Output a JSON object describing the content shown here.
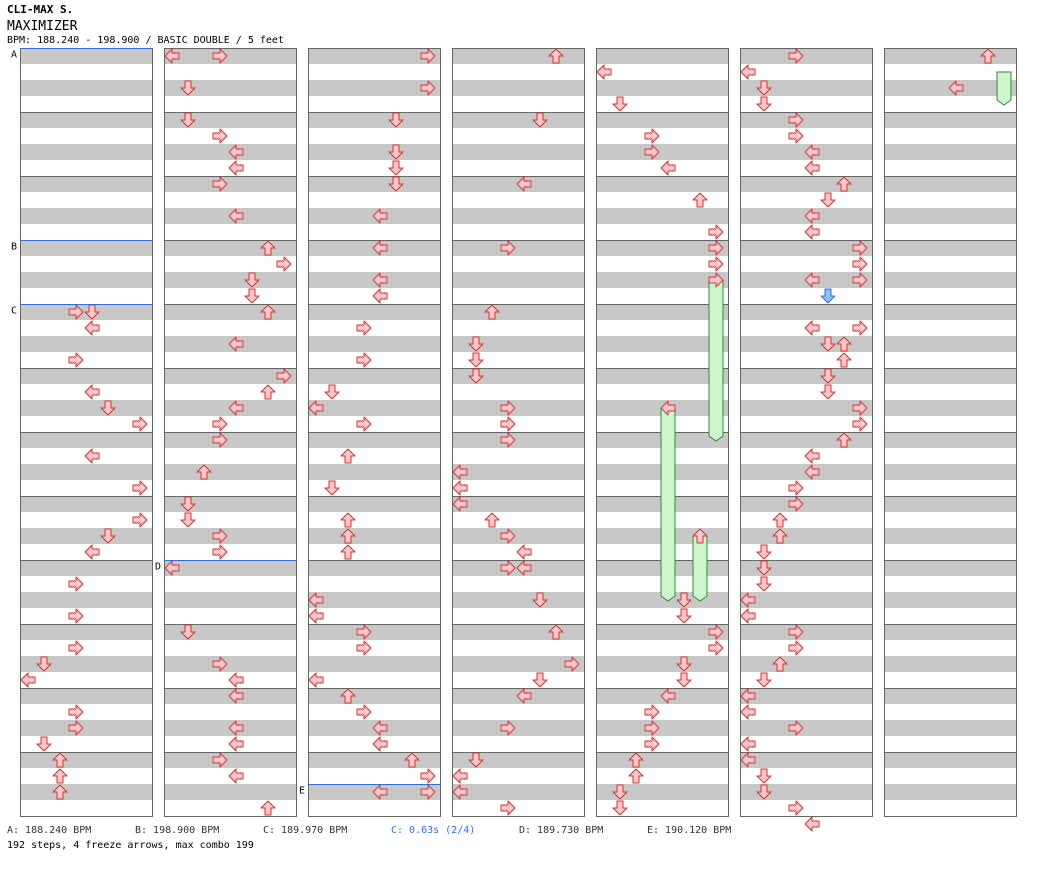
{
  "header": {
    "artist": "CLI-MAX S.",
    "title": "MAXIMIZER",
    "info": "BPM: 188.240 - 198.900 / BASIC DOUBLE / 5 feet"
  },
  "legend": [
    {
      "text": "A: 188.240 BPM",
      "color": "#333333"
    },
    {
      "text": "B: 198.900 BPM",
      "color": "#333333"
    },
    {
      "text": "C: 189.970 BPM",
      "color": "#333333"
    },
    {
      "text": "C: 0.63s (2/4)",
      "color": "#2f6fd6"
    },
    {
      "text": "D: 189.730 BPM",
      "color": "#333333"
    },
    {
      "text": "E: 190.120 BPM",
      "color": "#333333"
    }
  ],
  "summary": "192 steps, 4 freeze arrows, max combo 199",
  "colors": {
    "arrow_fill": "#f8c8c8",
    "arrow_stroke": "#cc3333",
    "freeze_fill": "#cff5cf",
    "freeze_stroke": "#2e8b2e",
    "stop_arrow": "#8ec0f0",
    "section_line": "#2f6fd6"
  },
  "chart_data": {
    "type": "step-chart",
    "style": "BASIC DOUBLE",
    "rows_per_column": 48,
    "direction_codes": "L=left, D=down, U=up, R=right",
    "sections": [
      {
        "label": "A",
        "column": 0,
        "row": 0
      },
      {
        "label": "B",
        "column": 0,
        "row": 12
      },
      {
        "label": "C",
        "column": 0,
        "row": 16
      },
      {
        "label": "D",
        "column": 1,
        "row": 32
      },
      {
        "label": "E",
        "column": 2,
        "row": 46
      }
    ],
    "columns": [
      {
        "arrows": [
          [
            16,
            3,
            "R"
          ],
          [
            16,
            4,
            "D"
          ],
          [
            17,
            4,
            "L"
          ],
          [
            19,
            3,
            "R"
          ],
          [
            21,
            4,
            "L"
          ],
          [
            22,
            5,
            "D"
          ],
          [
            23,
            7,
            "R"
          ],
          [
            25,
            4,
            "L"
          ],
          [
            27,
            7,
            "R"
          ],
          [
            29,
            7,
            "R"
          ],
          [
            30,
            5,
            "D"
          ],
          [
            31,
            4,
            "L"
          ],
          [
            33,
            3,
            "R"
          ],
          [
            35,
            3,
            "R"
          ],
          [
            37,
            3,
            "R"
          ],
          [
            38,
            1,
            "D"
          ],
          [
            39,
            0,
            "L"
          ],
          [
            41,
            3,
            "R"
          ],
          [
            42,
            3,
            "R"
          ],
          [
            43,
            1,
            "D"
          ],
          [
            44,
            2,
            "U"
          ],
          [
            45,
            2,
            "U"
          ],
          [
            46,
            2,
            "U"
          ]
        ],
        "freezes": [],
        "stops": []
      },
      {
        "arrows": [
          [
            0,
            0,
            "L"
          ],
          [
            0,
            3,
            "R"
          ],
          [
            2,
            1,
            "D"
          ],
          [
            4,
            1,
            "D"
          ],
          [
            5,
            3,
            "R"
          ],
          [
            6,
            4,
            "L"
          ],
          [
            7,
            4,
            "L"
          ],
          [
            8,
            3,
            "R"
          ],
          [
            10,
            4,
            "L"
          ],
          [
            12,
            6,
            "U"
          ],
          [
            13,
            7,
            "R"
          ],
          [
            14,
            5,
            "D"
          ],
          [
            15,
            5,
            "D"
          ],
          [
            16,
            6,
            "U"
          ],
          [
            18,
            4,
            "L"
          ],
          [
            20,
            7,
            "R"
          ],
          [
            21,
            6,
            "U"
          ],
          [
            22,
            4,
            "L"
          ],
          [
            23,
            3,
            "R"
          ],
          [
            24,
            3,
            "R"
          ],
          [
            26,
            2,
            "U"
          ],
          [
            28,
            1,
            "D"
          ],
          [
            29,
            1,
            "D"
          ],
          [
            30,
            3,
            "R"
          ],
          [
            31,
            3,
            "R"
          ],
          [
            32,
            0,
            "L"
          ],
          [
            36,
            1,
            "D"
          ],
          [
            38,
            3,
            "R"
          ],
          [
            39,
            4,
            "L"
          ],
          [
            40,
            4,
            "L"
          ],
          [
            42,
            4,
            "L"
          ],
          [
            43,
            4,
            "L"
          ],
          [
            44,
            3,
            "R"
          ],
          [
            45,
            4,
            "L"
          ],
          [
            47,
            6,
            "U"
          ]
        ],
        "freezes": [],
        "stops": []
      },
      {
        "arrows": [
          [
            0,
            7,
            "R"
          ],
          [
            2,
            7,
            "R"
          ],
          [
            4,
            5,
            "D"
          ],
          [
            6,
            5,
            "D"
          ],
          [
            7,
            5,
            "D"
          ],
          [
            8,
            5,
            "D"
          ],
          [
            10,
            4,
            "L"
          ],
          [
            12,
            4,
            "L"
          ],
          [
            14,
            4,
            "L"
          ],
          [
            15,
            4,
            "L"
          ],
          [
            17,
            3,
            "R"
          ],
          [
            19,
            3,
            "R"
          ],
          [
            21,
            1,
            "D"
          ],
          [
            22,
            0,
            "L"
          ],
          [
            23,
            3,
            "R"
          ],
          [
            25,
            2,
            "U"
          ],
          [
            27,
            1,
            "D"
          ],
          [
            29,
            2,
            "U"
          ],
          [
            30,
            2,
            "U"
          ],
          [
            31,
            2,
            "U"
          ],
          [
            34,
            0,
            "L"
          ],
          [
            35,
            0,
            "L"
          ],
          [
            36,
            3,
            "R"
          ],
          [
            37,
            3,
            "R"
          ],
          [
            39,
            0,
            "L"
          ],
          [
            40,
            2,
            "U"
          ],
          [
            41,
            3,
            "R"
          ],
          [
            42,
            4,
            "L"
          ],
          [
            43,
            4,
            "L"
          ],
          [
            44,
            6,
            "U"
          ],
          [
            45,
            7,
            "R"
          ],
          [
            46,
            4,
            "L"
          ],
          [
            46,
            7,
            "R"
          ]
        ],
        "freezes": [],
        "stops": []
      },
      {
        "arrows": [
          [
            0,
            6,
            "U"
          ],
          [
            4,
            5,
            "D"
          ],
          [
            8,
            4,
            "L"
          ],
          [
            12,
            3,
            "R"
          ],
          [
            16,
            2,
            "U"
          ],
          [
            18,
            1,
            "D"
          ],
          [
            19,
            1,
            "D"
          ],
          [
            20,
            1,
            "D"
          ],
          [
            22,
            3,
            "R"
          ],
          [
            23,
            3,
            "R"
          ],
          [
            24,
            3,
            "R"
          ],
          [
            26,
            0,
            "L"
          ],
          [
            27,
            0,
            "L"
          ],
          [
            28,
            0,
            "L"
          ],
          [
            29,
            2,
            "U"
          ],
          [
            30,
            3,
            "R"
          ],
          [
            31,
            4,
            "L"
          ],
          [
            32,
            3,
            "R"
          ],
          [
            32,
            4,
            "L"
          ],
          [
            34,
            5,
            "D"
          ],
          [
            36,
            6,
            "U"
          ],
          [
            38,
            7,
            "R"
          ],
          [
            39,
            5,
            "D"
          ],
          [
            40,
            4,
            "L"
          ],
          [
            42,
            3,
            "R"
          ],
          [
            44,
            1,
            "D"
          ],
          [
            45,
            0,
            "L"
          ],
          [
            46,
            0,
            "L"
          ],
          [
            47,
            3,
            "R"
          ]
        ],
        "freezes": [],
        "stops": []
      },
      {
        "arrows": [
          [
            1,
            0,
            "L"
          ],
          [
            3,
            1,
            "D"
          ],
          [
            5,
            3,
            "R"
          ],
          [
            6,
            3,
            "R"
          ],
          [
            7,
            4,
            "L"
          ],
          [
            9,
            6,
            "U"
          ],
          [
            11,
            7,
            "R"
          ],
          [
            12,
            7,
            "R"
          ],
          [
            13,
            7,
            "R"
          ],
          [
            14,
            7,
            "R"
          ],
          [
            22,
            4,
            "L"
          ],
          [
            30,
            6,
            "U"
          ],
          [
            34,
            5,
            "D"
          ],
          [
            35,
            5,
            "D"
          ],
          [
            36,
            7,
            "R"
          ],
          [
            37,
            7,
            "R"
          ],
          [
            38,
            5,
            "D"
          ],
          [
            39,
            5,
            "D"
          ],
          [
            40,
            4,
            "L"
          ],
          [
            41,
            3,
            "R"
          ],
          [
            42,
            3,
            "R"
          ],
          [
            43,
            3,
            "R"
          ],
          [
            44,
            2,
            "U"
          ],
          [
            45,
            2,
            "U"
          ],
          [
            46,
            1,
            "D"
          ],
          [
            47,
            1,
            "D"
          ]
        ],
        "freezes": [
          [
            14,
            24,
            7
          ],
          [
            22,
            34,
            4
          ],
          [
            30,
            34,
            6
          ]
        ],
        "stops": []
      },
      {
        "arrows": [
          [
            0,
            3,
            "R"
          ],
          [
            1,
            0,
            "L"
          ],
          [
            2,
            1,
            "D"
          ],
          [
            3,
            1,
            "D"
          ],
          [
            4,
            3,
            "R"
          ],
          [
            5,
            3,
            "R"
          ],
          [
            6,
            4,
            "L"
          ],
          [
            7,
            4,
            "L"
          ],
          [
            8,
            6,
            "U"
          ],
          [
            9,
            5,
            "D"
          ],
          [
            10,
            4,
            "L"
          ],
          [
            11,
            4,
            "L"
          ],
          [
            12,
            7,
            "R"
          ],
          [
            13,
            7,
            "R"
          ],
          [
            14,
            4,
            "L"
          ],
          [
            14,
            7,
            "R"
          ],
          [
            17,
            4,
            "L"
          ],
          [
            17,
            7,
            "R"
          ],
          [
            18,
            5,
            "D"
          ],
          [
            18,
            6,
            "U"
          ],
          [
            19,
            6,
            "U"
          ],
          [
            20,
            5,
            "D"
          ],
          [
            21,
            5,
            "D"
          ],
          [
            22,
            7,
            "R"
          ],
          [
            23,
            7,
            "R"
          ],
          [
            24,
            6,
            "U"
          ],
          [
            25,
            4,
            "L"
          ],
          [
            26,
            4,
            "L"
          ],
          [
            27,
            3,
            "R"
          ],
          [
            28,
            3,
            "R"
          ],
          [
            29,
            2,
            "U"
          ],
          [
            30,
            2,
            "U"
          ],
          [
            31,
            1,
            "D"
          ],
          [
            32,
            1,
            "D"
          ],
          [
            33,
            1,
            "D"
          ],
          [
            34,
            0,
            "L"
          ],
          [
            35,
            0,
            "L"
          ],
          [
            36,
            3,
            "R"
          ],
          [
            37,
            3,
            "R"
          ],
          [
            38,
            2,
            "U"
          ],
          [
            39,
            1,
            "D"
          ],
          [
            40,
            0,
            "L"
          ],
          [
            41,
            0,
            "L"
          ],
          [
            42,
            3,
            "R"
          ],
          [
            43,
            0,
            "L"
          ],
          [
            44,
            0,
            "L"
          ],
          [
            45,
            1,
            "D"
          ],
          [
            46,
            1,
            "D"
          ],
          [
            47,
            3,
            "R"
          ],
          [
            48,
            4,
            "L"
          ]
        ],
        "freezes": [],
        "stops": [
          [
            15,
            5,
            "D"
          ]
        ]
      },
      {
        "arrows": [
          [
            0,
            6,
            "U"
          ],
          [
            2,
            4,
            "L"
          ]
        ],
        "freezes": [
          [
            1,
            3,
            7
          ]
        ],
        "stops": []
      }
    ]
  }
}
